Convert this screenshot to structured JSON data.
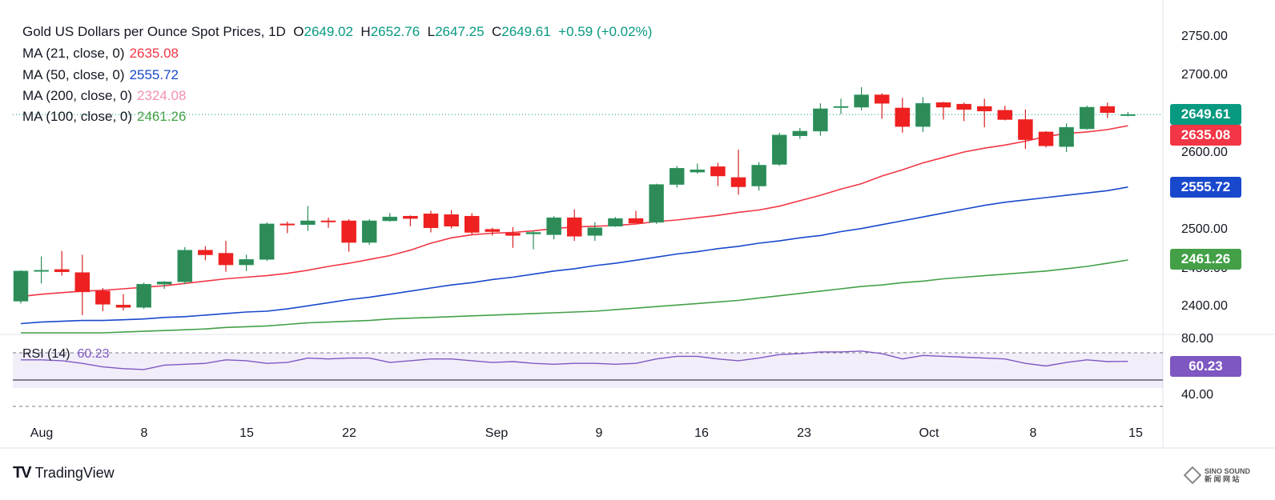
{
  "header": {
    "title": "Gold US Dollars per Ounce Spot Prices, 1D",
    "open_label": "O",
    "open": "2649.02",
    "high_label": "H",
    "high": "2652.76",
    "low_label": "L",
    "low": "2647.25",
    "close_label": "C",
    "close": "2649.61",
    "change": "+0.59 (+0.02%)"
  },
  "legend": [
    {
      "label": "MA (21, close, 0)",
      "value": "2635.08",
      "color": "#f23645"
    },
    {
      "label": "MA (50, close, 0)",
      "value": "2555.72",
      "color": "#1848cc"
    },
    {
      "label": "MA (200, close, 0)",
      "value": "2324.08",
      "color": "#f48fb1"
    },
    {
      "label": "MA (100, close, 0)",
      "value": "2461.26",
      "color": "#43a047"
    }
  ],
  "rsi": {
    "label": "RSI (14)",
    "value": "60.23",
    "color": "#7e57c2"
  },
  "price_tags": {
    "last": {
      "value": "2649.61",
      "color": "#089981"
    },
    "ma21": {
      "value": "2635.08",
      "color": "#f23645"
    },
    "ma50": {
      "value": "2555.72",
      "color": "#1848cc"
    },
    "ma100": {
      "value": "2461.26",
      "color": "#43a047"
    },
    "rsi": {
      "value": "60.23",
      "color": "#7e57c2"
    }
  },
  "brand": {
    "name": "TradingView",
    "logo": "TV"
  },
  "watermark": {
    "line1": "SINO SOUND",
    "line2": "新 闻 网 站"
  },
  "chart_data": {
    "type": "candlestick",
    "title": "Gold US Dollars per Ounce Spot Prices, 1D",
    "y_axis": {
      "ticks": [
        2400,
        2450,
        2500,
        2600,
        2700,
        2750
      ],
      "tick_labels": [
        "2400.00",
        "2450.00",
        "2500.00",
        "2600.00",
        "2700.00",
        "2750.00"
      ],
      "ylim": [
        2385,
        2768
      ]
    },
    "x_axis": {
      "ticks": [
        "Aug",
        "8",
        "15",
        "22",
        "Sep",
        "9",
        "16",
        "23",
        "Oct",
        "8",
        "15"
      ],
      "tick_index": [
        2,
        7,
        12,
        17,
        22,
        27,
        32,
        37,
        42,
        47,
        52
      ]
    },
    "candles": [
      {
        "o": 2408,
        "h": 2448,
        "l": 2405,
        "c": 2447
      },
      {
        "o": 2447,
        "h": 2466,
        "l": 2431,
        "c": 2448
      },
      {
        "o": 2449,
        "h": 2473,
        "l": 2441,
        "c": 2446
      },
      {
        "o": 2445,
        "h": 2468,
        "l": 2390,
        "c": 2420
      },
      {
        "o": 2421,
        "h": 2425,
        "l": 2395,
        "c": 2404
      },
      {
        "o": 2403,
        "h": 2417,
        "l": 2396,
        "c": 2400
      },
      {
        "o": 2400,
        "h": 2432,
        "l": 2398,
        "c": 2430
      },
      {
        "o": 2430,
        "h": 2434,
        "l": 2424,
        "c": 2433
      },
      {
        "o": 2433,
        "h": 2478,
        "l": 2430,
        "c": 2474
      },
      {
        "o": 2474,
        "h": 2479,
        "l": 2461,
        "c": 2468
      },
      {
        "o": 2470,
        "h": 2486,
        "l": 2446,
        "c": 2455
      },
      {
        "o": 2455,
        "h": 2468,
        "l": 2447,
        "c": 2462
      },
      {
        "o": 2462,
        "h": 2510,
        "l": 2460,
        "c": 2508
      },
      {
        "o": 2508,
        "h": 2511,
        "l": 2496,
        "c": 2507
      },
      {
        "o": 2507,
        "h": 2531,
        "l": 2499,
        "c": 2512
      },
      {
        "o": 2512,
        "h": 2516,
        "l": 2503,
        "c": 2511
      },
      {
        "o": 2512,
        "h": 2514,
        "l": 2472,
        "c": 2484
      },
      {
        "o": 2484,
        "h": 2514,
        "l": 2481,
        "c": 2512
      },
      {
        "o": 2512,
        "h": 2522,
        "l": 2511,
        "c": 2517
      },
      {
        "o": 2518,
        "h": 2519,
        "l": 2505,
        "c": 2515
      },
      {
        "o": 2521,
        "h": 2525,
        "l": 2497,
        "c": 2503
      },
      {
        "o": 2520,
        "h": 2526,
        "l": 2502,
        "c": 2505
      },
      {
        "o": 2518,
        "h": 2522,
        "l": 2494,
        "c": 2497
      },
      {
        "o": 2501,
        "h": 2503,
        "l": 2493,
        "c": 2498
      },
      {
        "o": 2496,
        "h": 2504,
        "l": 2477,
        "c": 2493
      },
      {
        "o": 2495,
        "h": 2499,
        "l": 2475,
        "c": 2497
      },
      {
        "o": 2494,
        "h": 2518,
        "l": 2488,
        "c": 2516
      },
      {
        "o": 2516,
        "h": 2527,
        "l": 2486,
        "c": 2492
      },
      {
        "o": 2493,
        "h": 2510,
        "l": 2486,
        "c": 2503
      },
      {
        "o": 2505,
        "h": 2517,
        "l": 2504,
        "c": 2515
      },
      {
        "o": 2515,
        "h": 2525,
        "l": 2512,
        "c": 2509
      },
      {
        "o": 2510,
        "h": 2560,
        "l": 2508,
        "c": 2559
      },
      {
        "o": 2559,
        "h": 2583,
        "l": 2555,
        "c": 2580
      },
      {
        "o": 2575,
        "h": 2586,
        "l": 2573,
        "c": 2578
      },
      {
        "o": 2582,
        "h": 2587,
        "l": 2557,
        "c": 2570
      },
      {
        "o": 2568,
        "h": 2604,
        "l": 2546,
        "c": 2556
      },
      {
        "o": 2557,
        "h": 2588,
        "l": 2551,
        "c": 2584
      },
      {
        "o": 2585,
        "h": 2626,
        "l": 2583,
        "c": 2623
      },
      {
        "o": 2622,
        "h": 2632,
        "l": 2618,
        "c": 2628
      },
      {
        "o": 2628,
        "h": 2664,
        "l": 2622,
        "c": 2657
      },
      {
        "o": 2660,
        "h": 2670,
        "l": 2650,
        "c": 2660
      },
      {
        "o": 2659,
        "h": 2685,
        "l": 2655,
        "c": 2675
      },
      {
        "o": 2675,
        "h": 2677,
        "l": 2644,
        "c": 2664
      },
      {
        "o": 2658,
        "h": 2671,
        "l": 2626,
        "c": 2634
      },
      {
        "o": 2634,
        "h": 2672,
        "l": 2627,
        "c": 2664
      },
      {
        "o": 2665,
        "h": 2666,
        "l": 2643,
        "c": 2659
      },
      {
        "o": 2663,
        "h": 2665,
        "l": 2641,
        "c": 2656
      },
      {
        "o": 2660,
        "h": 2670,
        "l": 2633,
        "c": 2654
      },
      {
        "o": 2655,
        "h": 2661,
        "l": 2642,
        "c": 2643
      },
      {
        "o": 2643,
        "h": 2656,
        "l": 2605,
        "c": 2617
      },
      {
        "o": 2627,
        "h": 2628,
        "l": 2607,
        "c": 2609
      },
      {
        "o": 2608,
        "h": 2638,
        "l": 2601,
        "c": 2633
      },
      {
        "o": 2631,
        "h": 2661,
        "l": 2630,
        "c": 2659
      },
      {
        "o": 2660,
        "h": 2665,
        "l": 2645,
        "c": 2652
      },
      {
        "o": 2649.02,
        "h": 2652.76,
        "l": 2647.25,
        "c": 2649.61
      }
    ],
    "ma21": [
      2414,
      2417,
      2419,
      2421,
      2422,
      2424,
      2426,
      2428,
      2431,
      2434,
      2437,
      2439,
      2441,
      2444,
      2448,
      2453,
      2457,
      2462,
      2467,
      2474,
      2483,
      2490,
      2494,
      2496,
      2497,
      2499,
      2502,
      2504,
      2505,
      2506,
      2508,
      2511,
      2513,
      2516,
      2519,
      2523,
      2526,
      2531,
      2538,
      2545,
      2553,
      2560,
      2570,
      2578,
      2587,
      2594,
      2601,
      2606,
      2610,
      2615,
      2621,
      2625,
      2627,
      2630,
      2635.08
    ],
    "ma50": [
      2379,
      2381,
      2382,
      2383,
      2383,
      2384,
      2385,
      2387,
      2388,
      2390,
      2392,
      2394,
      2395,
      2398,
      2402,
      2406,
      2410,
      2413,
      2417,
      2421,
      2425,
      2429,
      2432,
      2436,
      2439,
      2443,
      2447,
      2450,
      2454,
      2457,
      2461,
      2465,
      2469,
      2472,
      2476,
      2479,
      2483,
      2486,
      2490,
      2493,
      2498,
      2502,
      2507,
      2512,
      2517,
      2522,
      2527,
      2532,
      2536,
      2539,
      2542,
      2545,
      2548,
      2551,
      2555.72
    ],
    "ma100": [
      2363,
      2364,
      2365,
      2366,
      2367,
      2368,
      2369,
      2370,
      2371,
      2372,
      2374,
      2375,
      2376,
      2378,
      2380,
      2381,
      2382,
      2383,
      2385,
      2386,
      2387,
      2388,
      2389,
      2390,
      2391,
      2392,
      2393,
      2394,
      2395,
      2397,
      2399,
      2401,
      2403,
      2405,
      2407,
      2409,
      2412,
      2415,
      2418,
      2421,
      2424,
      2427,
      2429,
      2432,
      2434,
      2437,
      2439,
      2441,
      2443,
      2445,
      2447,
      2450,
      2453,
      2457,
      2461.26
    ],
    "rsi_series": [
      62,
      62,
      61,
      58,
      54,
      52,
      51,
      56,
      57,
      58,
      62,
      61,
      58,
      59,
      64,
      63,
      64,
      64,
      59,
      61,
      63,
      63,
      61,
      59,
      60,
      58,
      57,
      58,
      58,
      57,
      58,
      63,
      66,
      66,
      63,
      61,
      64,
      68,
      69,
      71,
      71,
      72,
      69,
      63,
      67,
      66,
      65,
      64,
      63,
      58,
      55,
      59,
      62,
      60,
      60.23
    ],
    "rsi_axis": {
      "ticks": [
        40,
        80
      ],
      "tick_labels": [
        "40.00",
        "80.00"
      ],
      "ylim": [
        36,
        84
      ],
      "band": [
        30,
        70
      ]
    }
  }
}
